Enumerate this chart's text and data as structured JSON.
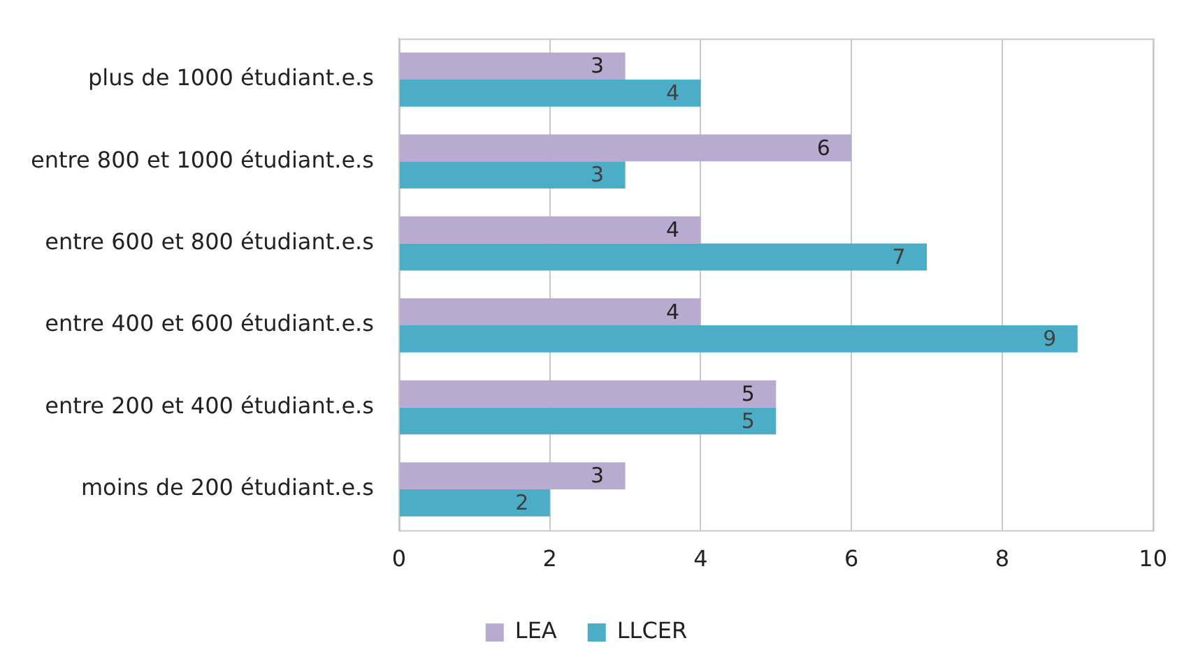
{
  "chart_data": {
    "type": "bar",
    "orientation": "horizontal",
    "categories": [
      "plus de 1000 étudiant.e.s",
      "entre 800 et 1000 étudiant.e.s",
      "entre 600 et 800 étudiant.e.s",
      "entre 400 et 600 étudiant.e.s",
      "entre 200 et 400 étudiant.e.s",
      "moins de 200 étudiant.e.s"
    ],
    "series": [
      {
        "name": "LEA",
        "color": "#b9abd0",
        "values": [
          3,
          6,
          4,
          4,
          5,
          3
        ]
      },
      {
        "name": "LLCER",
        "color": "#4badc6",
        "values": [
          4,
          3,
          7,
          9,
          5,
          2
        ]
      }
    ],
    "xlim": [
      0,
      10
    ],
    "xticks": [
      0,
      2,
      4,
      6,
      8,
      10
    ],
    "grid": "x",
    "legend": "bottom",
    "data_labels": true
  }
}
